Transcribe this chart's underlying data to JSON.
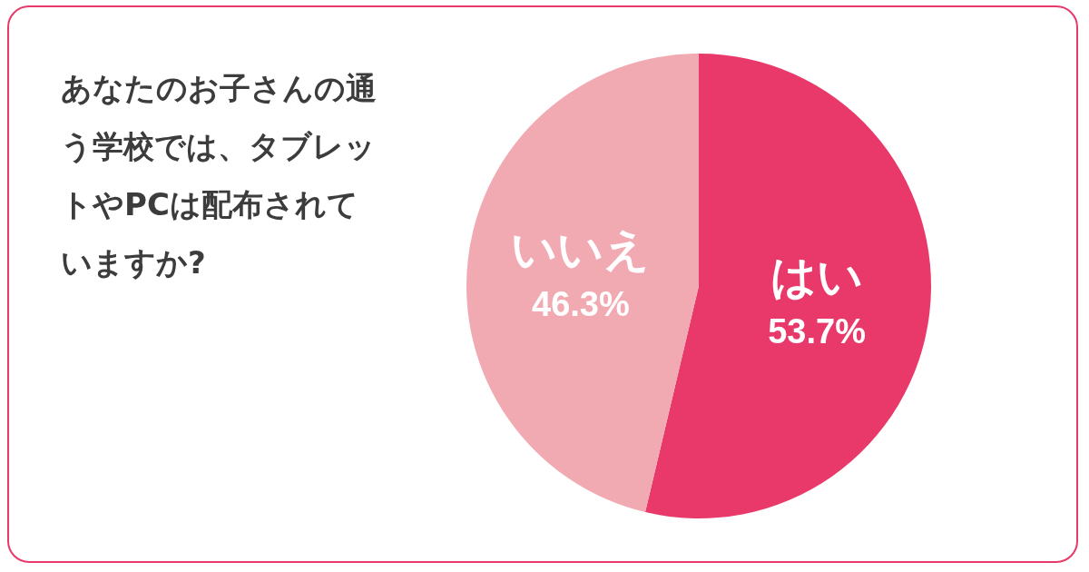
{
  "chart_data": {
    "type": "pie",
    "title": "あなたのお子さんの通う学校では、タブレットやPCは配布されていますか?",
    "categories": [
      "はい",
      "いいえ"
    ],
    "values": [
      53.7,
      46.3
    ],
    "colors": [
      "#e8396a",
      "#f2aab2"
    ],
    "value_labels": [
      "53.7%",
      "46.3%"
    ]
  }
}
